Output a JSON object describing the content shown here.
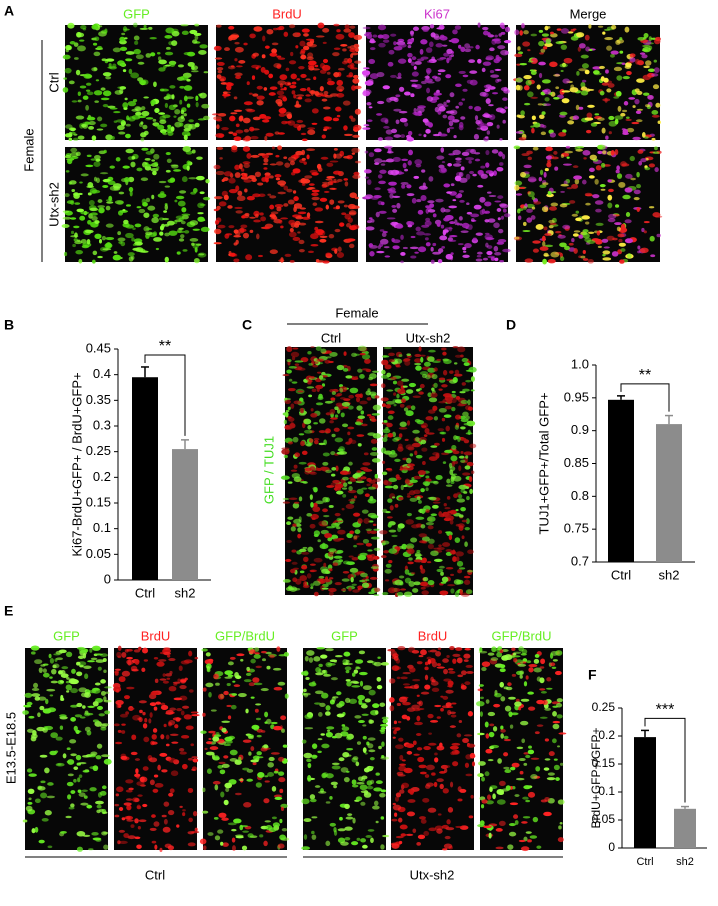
{
  "panels": {
    "A": {
      "letter": "A",
      "columns": [
        "GFP",
        "BrdU",
        "Ki67",
        "Merge"
      ],
      "rows": [
        "Ctrl",
        "Utx-sh2"
      ],
      "group": "Female"
    },
    "B": {
      "letter": "B"
    },
    "C": {
      "letter": "C",
      "group": "Female",
      "columns": [
        "Ctrl",
        "Utx-sh2"
      ],
      "ylabel": "GFP / TUJ1"
    },
    "D": {
      "letter": "D"
    },
    "E": {
      "letter": "E",
      "columns": [
        "GFP",
        "BrdU",
        "GFP/BrdU",
        "GFP",
        "BrdU",
        "GFP/BrdU"
      ],
      "side": "E13.5-E18.5",
      "groups": [
        "Ctrl",
        "Utx-sh2"
      ]
    },
    "F": {
      "letter": "F"
    }
  },
  "chart_data": [
    {
      "type": "bar",
      "ylabel": "Ki67-BrdU+GFP+ / BrdU+GFP+",
      "categories": [
        "Ctrl",
        "sh2"
      ],
      "values": [
        0.395,
        0.255
      ],
      "errors": [
        0.02,
        0.018
      ],
      "colors": [
        "#000000",
        "#8c8c8c"
      ],
      "ylim": [
        0,
        0.45
      ],
      "yticks": [
        0,
        0.05,
        0.1,
        0.15,
        0.2,
        0.25,
        0.3,
        0.35,
        0.4,
        0.45
      ],
      "annotation": "**"
    },
    {
      "type": "bar",
      "ylabel": "TUJ1+GFP+/Total GFP+",
      "categories": [
        "Ctrl",
        "sh2"
      ],
      "values": [
        0.947,
        0.91
      ],
      "errors": [
        0.006,
        0.013
      ],
      "colors": [
        "#000000",
        "#8c8c8c"
      ],
      "ylim": [
        0.7,
        1
      ],
      "yticks": [
        0.7,
        0.75,
        0.8,
        0.85,
        0.9,
        0.95,
        {
          "value": 1,
          "label": "1.0"
        }
      ],
      "annotation": "**"
    },
    {
      "type": "bar",
      "ylabel": "BrdU+GFP+/GFP+",
      "categories": [
        "Ctrl",
        "sh2"
      ],
      "values": [
        0.198,
        0.07
      ],
      "errors": [
        0.012,
        0.004
      ],
      "colors": [
        "#000000",
        "#8c8c8c"
      ],
      "ylim": [
        0,
        0.25
      ],
      "yticks": [
        0,
        0.05,
        0.1,
        0.15,
        0.2,
        0.25
      ],
      "annotation": "***"
    }
  ]
}
